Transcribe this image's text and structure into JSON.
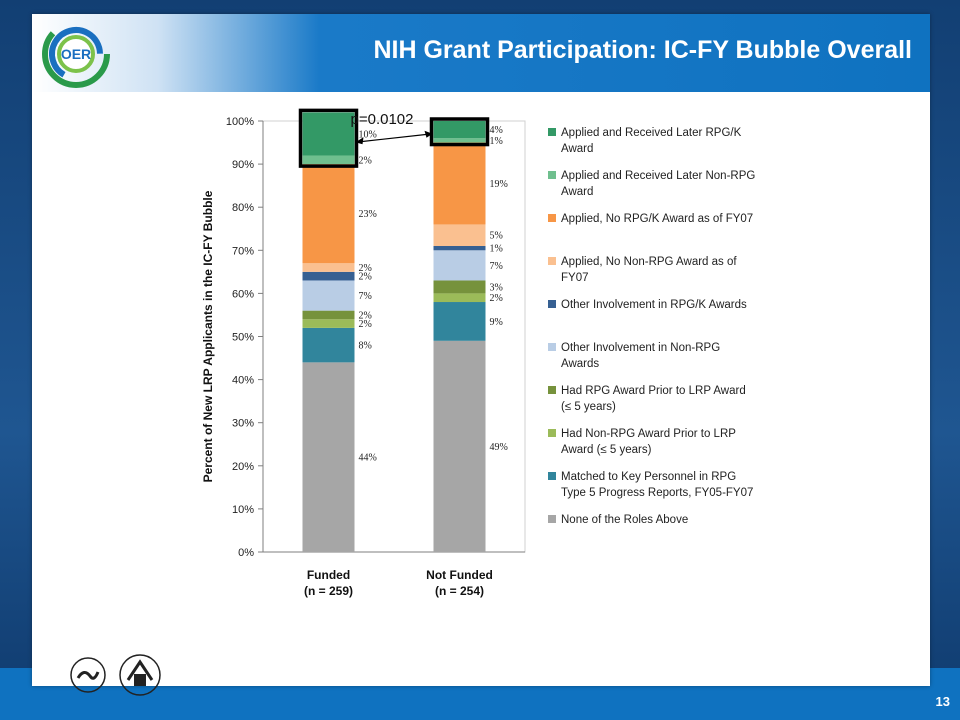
{
  "slide": {
    "title": "NIH Grant Participation: IC-FY Bubble Overall",
    "page_number": "13",
    "logo_text": "OER"
  },
  "colors": {
    "header_blue": "#0f72c0",
    "background_navy": "#1d4f86"
  },
  "chart_data": {
    "type": "bar",
    "stacked": true,
    "ylabel": "Percent of New LRP Applicants in the IC-FY Bubble",
    "ylim": [
      0,
      100
    ],
    "yticks": [
      "0%",
      "10%",
      "20%",
      "30%",
      "40%",
      "50%",
      "60%",
      "70%",
      "80%",
      "90%",
      "100%"
    ],
    "categories": [
      {
        "line1": "Funded",
        "line2": "(n = 259)"
      },
      {
        "line1": "Not Funded",
        "line2": "(n = 254)"
      }
    ],
    "series": [
      {
        "name": "None of the Roles Above",
        "color": "#a6a6a6",
        "values": [
          44,
          49
        ],
        "labels": [
          "44%",
          "49%"
        ]
      },
      {
        "name": "Matched to Key Personnel in RPG Type 5 Progress Reports, FY05-FY07",
        "color": "#31859c",
        "values": [
          8,
          9
        ],
        "labels": [
          "8%",
          "9%"
        ]
      },
      {
        "name": "Had Non-RPG Award Prior to LRP Award (≤ 5 years)",
        "color": "#9bbb59",
        "values": [
          2,
          2
        ],
        "labels": [
          "2%",
          "2%"
        ]
      },
      {
        "name": "Had RPG Award Prior to LRP Award (≤ 5 years)",
        "color": "#76923c",
        "values": [
          2,
          3
        ],
        "labels": [
          "2%",
          "3%"
        ]
      },
      {
        "name": "Other Involvement in Non-RPG Awards",
        "color": "#b9cde5",
        "values": [
          7,
          7
        ],
        "labels": [
          "7%",
          "7%"
        ]
      },
      {
        "name": "Other Involvement in RPG/K Awards",
        "color": "#366092",
        "values": [
          2,
          1
        ],
        "labels": [
          "2%",
          "1%"
        ]
      },
      {
        "name": "Applied, No Non-RPG Award as of FY07",
        "color": "#fac090",
        "values": [
          2,
          5
        ],
        "labels": [
          "2%",
          "5%"
        ]
      },
      {
        "name": "Applied, No RPG/K Award as of FY07",
        "color": "#f79646",
        "values": [
          23,
          19
        ],
        "labels": [
          "23%",
          "19%"
        ]
      },
      {
        "name": "Applied and Received Later Non-RPG Award",
        "color": "#6fbf8e",
        "values": [
          2,
          1
        ],
        "labels": [
          "2%",
          "1%"
        ]
      },
      {
        "name": "Applied and Received Later RPG/K Award",
        "color": "#339966",
        "values": [
          10,
          4
        ],
        "labels": [
          "10%",
          "4%"
        ]
      }
    ],
    "legend_position": "right",
    "annotation": "p=0.0102",
    "grid": false
  }
}
